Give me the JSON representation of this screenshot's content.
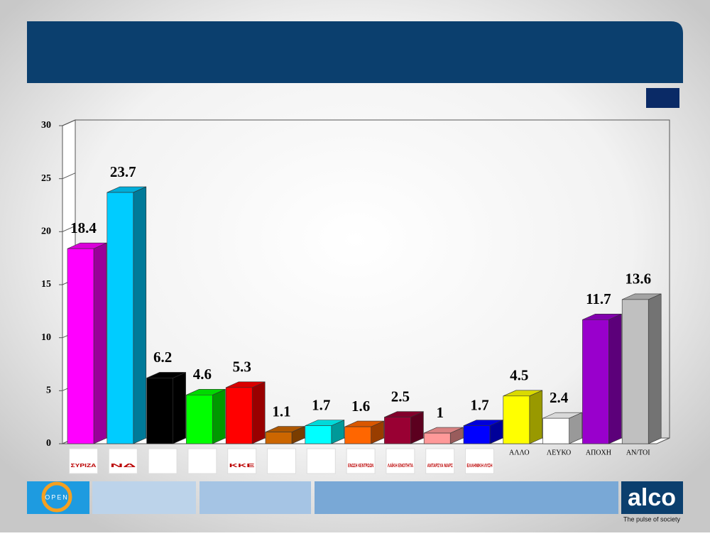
{
  "chart_data": {
    "type": "bar3d",
    "categories": [
      "ΣΥΡΙΖΑ",
      "ΝΔ",
      null,
      null,
      "ΚΚΕ",
      null,
      null,
      "ΕΝΩΣΗ ΚΕΝΤΡΩΩΝ",
      "ΛΑΪΚΗ ΕΝΟΤΗΤΑ",
      "ΑΝΤΑΡΣΥΑ ΜΑΡΣ",
      "ΕΛΛΗΝΙΚΗ ΛΥΣΗ",
      "ΑΛΛΟ",
      "ΛΕΥΚΟ",
      "ΑΠΟΧΗ",
      "ΑΝ/ΤΟΙ"
    ],
    "values": [
      18.4,
      23.7,
      6.2,
      4.6,
      5.3,
      1.1,
      1.7,
      1.6,
      2.5,
      1,
      1.7,
      4.5,
      2.4,
      11.7,
      13.6
    ],
    "colors": [
      "#ff00ff",
      "#00ccff",
      "#000000",
      "#00ff00",
      "#ff0000",
      "#cc6600",
      "#00ffff",
      "#ff6600",
      "#990033",
      "#ff9999",
      "#0000ff",
      "#ffff00",
      "#ffffff",
      "#9900cc",
      "#c0c0c0"
    ],
    "logo_category_count": 11,
    "ylim": [
      0,
      30
    ],
    "yticks": [
      0,
      5,
      10,
      15,
      20,
      25,
      30
    ]
  },
  "footer": {
    "channel": "OPEN",
    "brand": "alco",
    "tagline": "The pulse of society"
  }
}
